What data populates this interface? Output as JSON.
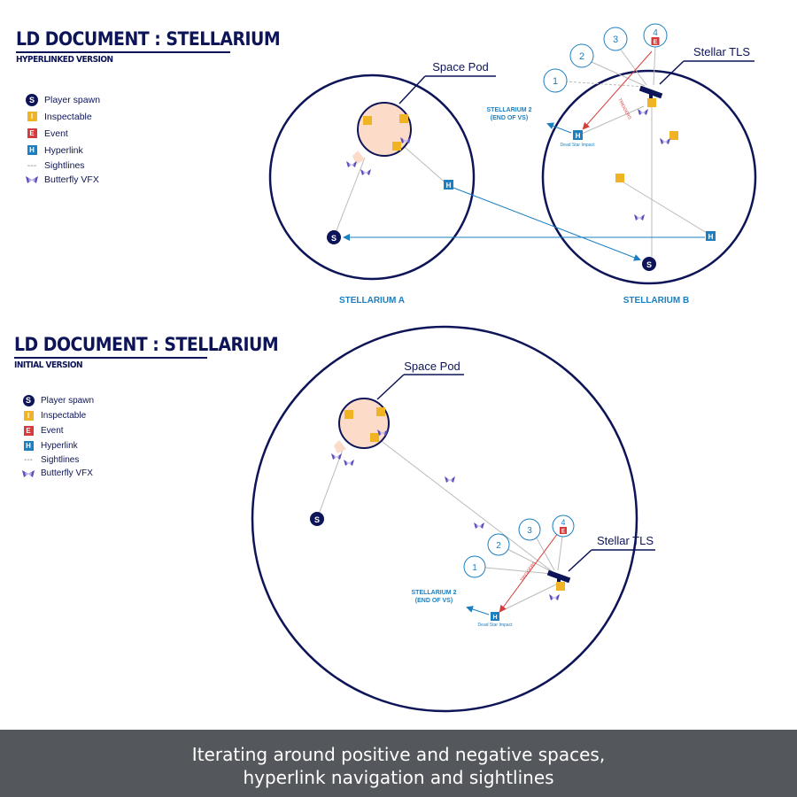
{
  "top": {
    "title": "LD DOCUMENT  : STELLARIUM",
    "subtitle": "HYPERLINKED VERSION",
    "area_a_label": "STELLARIUM A",
    "area_b_label": "STELLARIUM B",
    "space_pod_label": "Space Pod",
    "stellar_tls_label": "Stellar TLS",
    "exit_label_1": "STELLARIUM 2",
    "exit_label_2": "(END OF VS)",
    "impact_label": "Dead Star Impact",
    "triggers_label": "TRIGGERS"
  },
  "bottom": {
    "title": "LD DOCUMENT  : STELLARIUM",
    "subtitle": "INITIAL VERSION",
    "space_pod_label": "Space Pod",
    "stellar_tls_label": "Stellar TLS",
    "exit_label_1": "STELLARIUM 2",
    "exit_label_2": "(END OF VS)",
    "impact_label": "Dead Star Impact",
    "triggers_label": "TRIGGERS"
  },
  "legend": {
    "items": [
      {
        "symbol": "S",
        "label": "Player spawn",
        "color": "#0d1457",
        "icon": "player-spawn-icon"
      },
      {
        "symbol": "I",
        "label": "Inspectable",
        "color": "#f0b323",
        "icon": "inspectable-icon"
      },
      {
        "symbol": "E",
        "label": "Event",
        "color": "#d63a3a",
        "icon": "event-icon"
      },
      {
        "symbol": "H",
        "label": "Hyperlink",
        "color": "#1b7fc1",
        "icon": "hyperlink-icon"
      },
      {
        "symbol": "---",
        "label": "Sightlines",
        "color": "#888888",
        "icon": "sightline-icon"
      },
      {
        "symbol": "",
        "label": "Butterfly VFX",
        "color": "#5a4fb8",
        "icon": "butterfly-icon"
      }
    ]
  },
  "markers": {
    "spawn": "S",
    "inspectable": "I",
    "event": "E",
    "hyperlink": "H",
    "sightline_numbers": [
      "1",
      "2",
      "3",
      "4"
    ]
  },
  "caption": {
    "line1": "Iterating around positive and negative spaces,",
    "line2": "hyperlink navigation and sightlines"
  },
  "colors": {
    "navy": "#0d1457",
    "blue": "#1b7fc1",
    "red": "#d63a3a",
    "gold": "#f0b323",
    "pod_fill": "#fcdcc8",
    "caption_bg": "#54575b"
  }
}
